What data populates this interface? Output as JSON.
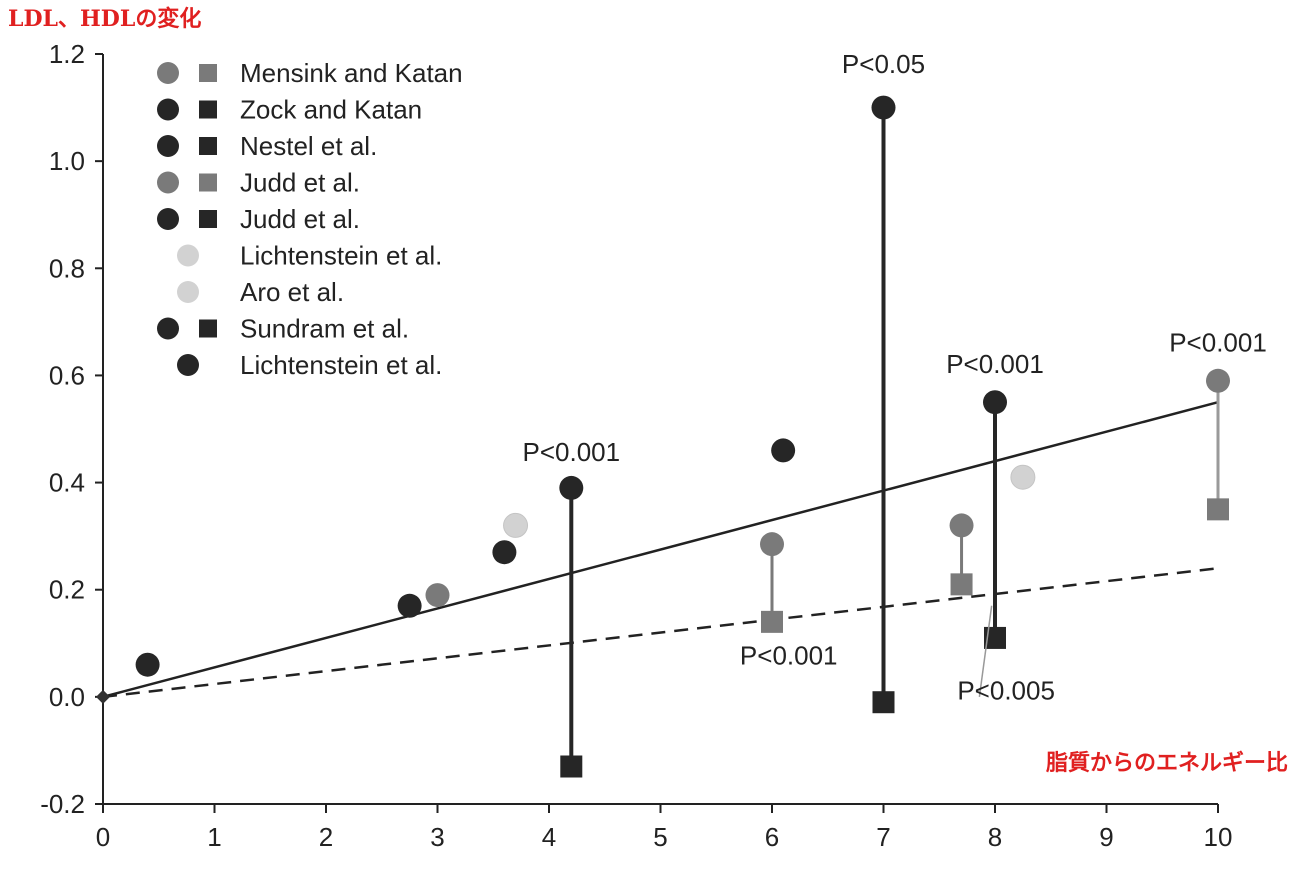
{
  "chart_data": {
    "type": "scatter",
    "title": "LDL、HDLの変化",
    "xlabel": "脂質からのエネルギー比",
    "ylabel": "",
    "xlim": [
      0,
      10
    ],
    "ylim": [
      -0.2,
      1.2
    ],
    "x_ticks": [
      "0",
      "1",
      "2",
      "3",
      "4",
      "5",
      "6",
      "7",
      "8",
      "9",
      "10"
    ],
    "y_ticks": [
      "-0.2",
      "0.0",
      "0.2",
      "0.4",
      "0.6",
      "0.8",
      "1.0",
      "1.2"
    ],
    "grid": false,
    "legend_position": "top-left",
    "colors": {
      "dark": "#262626",
      "gray": "#7a7a7a",
      "light": "#d2d2d2",
      "annotation_red": "#e02020"
    },
    "legend": [
      {
        "label": "Mensink and Katan",
        "circle": "gray",
        "square": "gray"
      },
      {
        "label": "Zock and Katan",
        "circle": "dark",
        "square": "dark"
      },
      {
        "label": "Nestel et al.",
        "circle": "dark",
        "square": "dark"
      },
      {
        "label": "Judd et al.",
        "circle": "gray",
        "square": "gray"
      },
      {
        "label": "Judd et al.",
        "circle": "dark",
        "square": "dark"
      },
      {
        "label": "Lichtenstein et al.",
        "circle": "light",
        "square": null
      },
      {
        "label": "Aro et al.",
        "circle": "light",
        "square": null
      },
      {
        "label": "Sundram et al.",
        "circle": "dark",
        "square": "dark"
      },
      {
        "label": "Lichtenstein et al.",
        "circle": "dark",
        "square": null
      }
    ],
    "circles": [
      {
        "x": 0.4,
        "y": 0.06,
        "color": "dark"
      },
      {
        "x": 2.75,
        "y": 0.17,
        "color": "dark"
      },
      {
        "x": 3.0,
        "y": 0.19,
        "color": "gray"
      },
      {
        "x": 3.6,
        "y": 0.27,
        "color": "dark"
      },
      {
        "x": 3.7,
        "y": 0.32,
        "color": "light"
      },
      {
        "x": 4.2,
        "y": 0.39,
        "color": "dark"
      },
      {
        "x": 6.0,
        "y": 0.285,
        "color": "gray"
      },
      {
        "x": 6.1,
        "y": 0.46,
        "color": "dark"
      },
      {
        "x": 7.0,
        "y": 1.1,
        "color": "dark"
      },
      {
        "x": 7.7,
        "y": 0.32,
        "color": "gray"
      },
      {
        "x": 8.0,
        "y": 0.55,
        "color": "dark"
      },
      {
        "x": 8.25,
        "y": 0.41,
        "color": "light"
      },
      {
        "x": 10.0,
        "y": 0.59,
        "color": "gray"
      }
    ],
    "squares": [
      {
        "x": 4.2,
        "y": -0.13,
        "color": "dark"
      },
      {
        "x": 6.0,
        "y": 0.14,
        "color": "gray"
      },
      {
        "x": 7.0,
        "y": -0.01,
        "color": "dark"
      },
      {
        "x": 7.7,
        "y": 0.21,
        "color": "gray"
      },
      {
        "x": 8.0,
        "y": 0.11,
        "color": "dark"
      },
      {
        "x": 10.0,
        "y": 0.35,
        "color": "gray"
      }
    ],
    "connectors": [
      {
        "x": 4.2,
        "y1": 0.39,
        "y2": -0.13,
        "color": "dark"
      },
      {
        "x": 6.0,
        "y1": 0.285,
        "y2": 0.14,
        "color": "gray"
      },
      {
        "x": 7.0,
        "y1": 1.1,
        "y2": -0.01,
        "color": "dark"
      },
      {
        "x": 7.7,
        "y1": 0.32,
        "y2": 0.21,
        "color": "gray"
      },
      {
        "x": 8.0,
        "y1": 0.55,
        "y2": 0.11,
        "color": "dark"
      },
      {
        "x": 10.0,
        "y1": 0.59,
        "y2": 0.35,
        "color": "light"
      }
    ],
    "regression_lines": [
      {
        "style": "solid",
        "x": [
          0,
          10
        ],
        "y": [
          0,
          0.55
        ]
      },
      {
        "style": "dashed",
        "x": [
          0,
          10
        ],
        "y": [
          0,
          0.24
        ]
      }
    ],
    "annotations": [
      {
        "text": "P<0.001",
        "x": 4.2,
        "y": 0.44
      },
      {
        "text": "P<0.05",
        "x": 7.0,
        "y": 1.165
      },
      {
        "text": "P<0.001",
        "x": 8.0,
        "y": 0.605
      },
      {
        "text": "P<0.001",
        "x": 10.0,
        "y": 0.645
      },
      {
        "text": "P<0.001",
        "x": 6.15,
        "y": 0.06
      },
      {
        "text": "P<0.005",
        "x": 8.1,
        "y": -0.005
      }
    ]
  }
}
